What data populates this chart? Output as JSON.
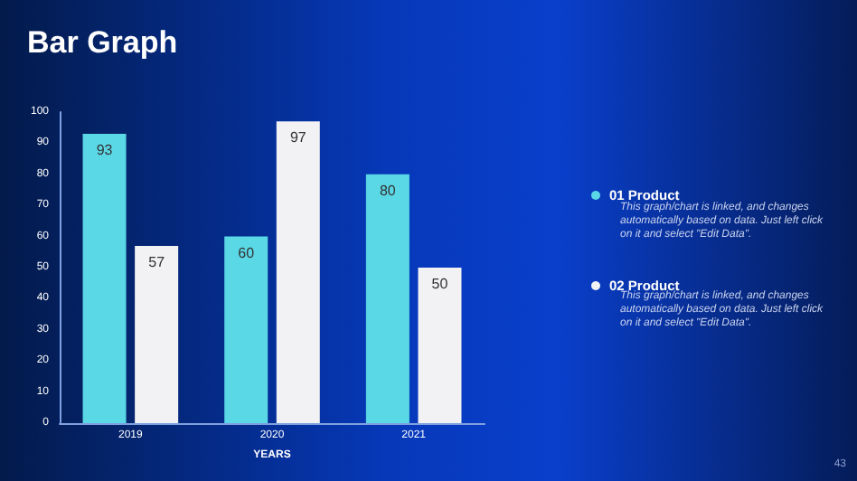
{
  "chart_data": {
    "type": "bar",
    "title": "Bar Graph",
    "xlabel": "YEARS",
    "categories": [
      "2019",
      "2020",
      "2021"
    ],
    "series": [
      {
        "name": "01 Product",
        "color": "#5ad8e6",
        "values": [
          93,
          60,
          80
        ]
      },
      {
        "name": "02 Product",
        "color": "#f2f2f4",
        "values": [
          57,
          97,
          50
        ]
      }
    ],
    "ylim": [
      0,
      100
    ],
    "yticks": [
      0,
      10,
      20,
      30,
      40,
      50,
      60,
      70,
      80,
      90,
      100
    ],
    "grid": false,
    "legend": "right",
    "data_labels": true,
    "annotations": [
      "This graph/chart is linked, and changes automatically based on data. Just left click on it and select \"Edit Data\".",
      "This graph/chart is linked, and changes automatically based on data. Just left click on it and select \"Edit Data\".",
      "43"
    ]
  }
}
